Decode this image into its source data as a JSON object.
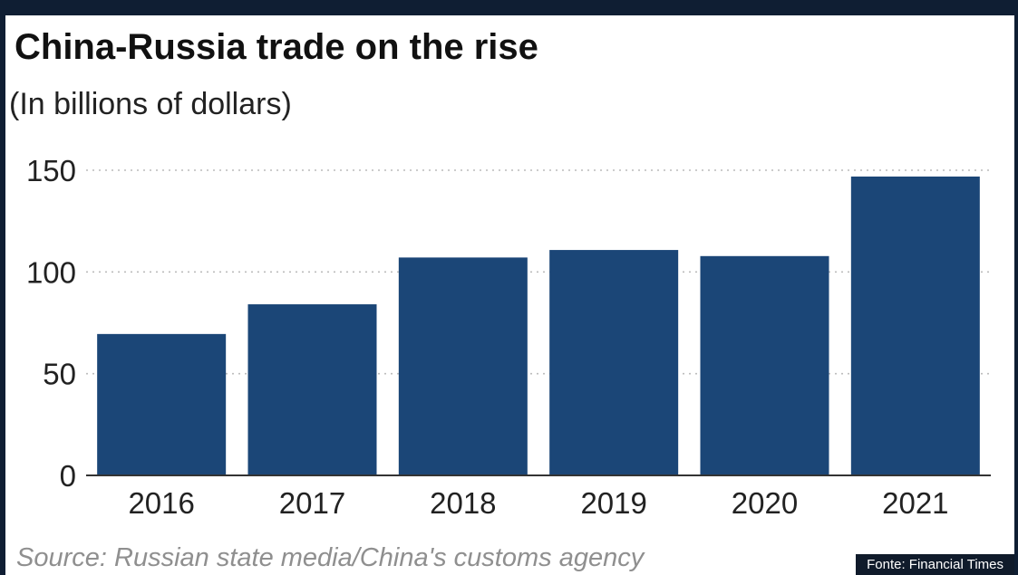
{
  "title": "China-Russia trade on the rise",
  "subtitle": "(In billions of dollars)",
  "source": "Source: Russian state media/China's customs agency",
  "credit": "Fonte: Financial Times",
  "colors": {
    "bar": "#1b4677",
    "frame": "#0f1e33",
    "grid": "#bcbcbc"
  },
  "chart_data": {
    "type": "bar",
    "title": "China-Russia trade on the rise",
    "subtitle": "(In billions of dollars)",
    "categories": [
      "2016",
      "2017",
      "2018",
      "2019",
      "2020",
      "2021"
    ],
    "values": [
      69.5,
      84.1,
      107.1,
      110.8,
      107.8,
      146.9
    ],
    "ylim": [
      0,
      150
    ],
    "yticks": [
      0,
      50,
      100,
      150
    ],
    "grid": "horizontal dotted",
    "legend": "none"
  }
}
